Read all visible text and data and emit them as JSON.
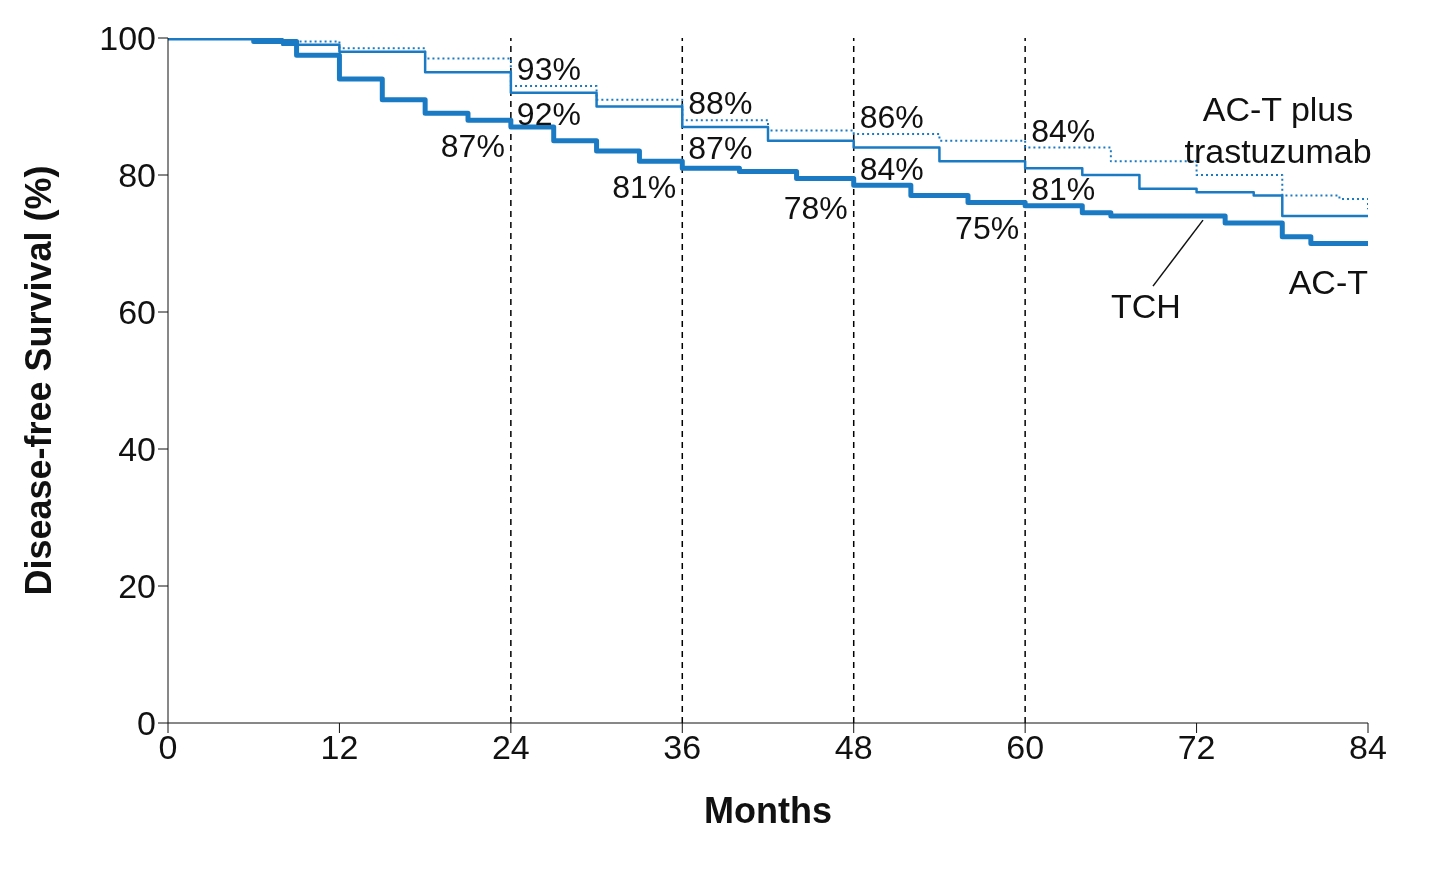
{
  "chart_data": {
    "type": "step",
    "xlabel": "Months",
    "ylabel": "Disease-free Survival (%)",
    "xlim": [
      0,
      84
    ],
    "xticks": [
      0,
      12,
      24,
      36,
      48,
      60,
      72,
      84
    ],
    "ylim": [
      0,
      100
    ],
    "yticks": [
      0,
      20,
      40,
      60,
      80,
      100
    ],
    "grid": false,
    "legend": false,
    "marker": "none",
    "series": [
      {
        "name": "AC-T plus trastuzumab",
        "color": "#1a7bc4",
        "line_style": "dotted",
        "x": [
          0,
          6,
          12,
          18,
          24,
          30,
          36,
          42,
          48,
          54,
          60,
          66,
          72,
          76,
          78,
          82,
          84
        ],
        "values": [
          100,
          99.5,
          98.5,
          97,
          93,
          91,
          88,
          86.5,
          86,
          85,
          84,
          82,
          80,
          80,
          77,
          76.5,
          75
        ]
      },
      {
        "name": "TCH",
        "color": "#1a7bc4",
        "line_style": "solid",
        "x": [
          0,
          8,
          12,
          18,
          24,
          30,
          36,
          42,
          48,
          54,
          60,
          64,
          68,
          72,
          76,
          78,
          84
        ],
        "values": [
          100,
          99,
          98,
          95,
          92,
          90,
          87,
          85,
          84,
          82,
          81,
          80,
          78,
          77.5,
          77,
          74,
          74
        ]
      },
      {
        "name": "AC-T",
        "color": "#1a7bc4",
        "line_style": "solid",
        "x": [
          0,
          6,
          9,
          12,
          15,
          18,
          21,
          24,
          27,
          30,
          33,
          36,
          40,
          44,
          48,
          52,
          56,
          60,
          64,
          66,
          70,
          74,
          78,
          80,
          84
        ],
        "values": [
          100,
          99.5,
          97.5,
          94,
          91,
          89,
          88,
          87,
          85,
          83.5,
          82,
          81,
          80.5,
          79.5,
          78.5,
          77,
          76,
          75.5,
          74.5,
          74,
          74,
          73,
          71,
          70,
          70
        ]
      }
    ],
    "ref_lines": [
      {
        "axis": "x",
        "value": 24,
        "line_style": "dashed",
        "color": "#000000"
      },
      {
        "axis": "x",
        "value": 36,
        "line_style": "dashed",
        "color": "#000000"
      },
      {
        "axis": "x",
        "value": 48,
        "line_style": "dashed",
        "color": "#000000"
      },
      {
        "axis": "x",
        "value": 60,
        "line_style": "dashed",
        "color": "#000000"
      }
    ],
    "annotations": [
      {
        "text": "93%",
        "x": 24,
        "y": 93
      },
      {
        "text": "92%",
        "x": 24,
        "y": 92
      },
      {
        "text": "87%",
        "x": 24,
        "y": 87
      },
      {
        "text": "88%",
        "x": 36,
        "y": 88
      },
      {
        "text": "87%",
        "x": 36,
        "y": 87
      },
      {
        "text": "81%",
        "x": 36,
        "y": 81
      },
      {
        "text": "86%",
        "x": 48,
        "y": 86
      },
      {
        "text": "84%",
        "x": 48,
        "y": 84
      },
      {
        "text": "78%",
        "x": 48,
        "y": 78
      },
      {
        "text": "84%",
        "x": 60,
        "y": 84
      },
      {
        "text": "81%",
        "x": 60,
        "y": 81
      },
      {
        "text": "75%",
        "x": 60,
        "y": 75
      }
    ]
  }
}
